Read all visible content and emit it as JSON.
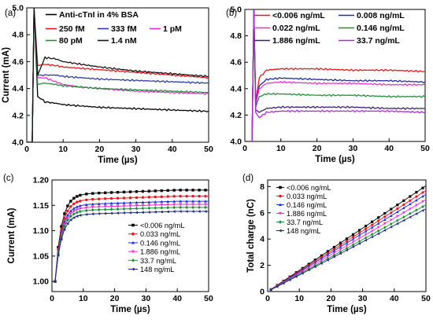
{
  "chart_data": [
    {
      "id": "a",
      "panel_label": "(a)",
      "type": "line",
      "xlabel": "Time (µs)",
      "ylabel": "Current (mA)",
      "xlim": [
        0,
        50
      ],
      "ylim": [
        4.0,
        5.0
      ],
      "xticks": [
        "0",
        "10",
        "20",
        "30",
        "40",
        "50"
      ],
      "yticks": [
        "4.0",
        "4.2",
        "4.4",
        "4.6",
        "4.8",
        "5.0"
      ],
      "legend_position": "top",
      "series": [
        {
          "name": "Anti-cTnI in 4% BSA",
          "color": "#000000",
          "x": [
            0,
            1.5,
            2,
            3,
            5,
            8,
            10,
            15,
            20,
            30,
            40,
            50
          ],
          "y": [
            4.0,
            4.0,
            5.0,
            4.34,
            4.3,
            4.29,
            4.28,
            4.27,
            4.26,
            4.25,
            4.24,
            4.23
          ]
        },
        {
          "name": "250 fM",
          "color": "#e8151b",
          "x": [
            0,
            1.5,
            2,
            3,
            5,
            8,
            10,
            15,
            20,
            30,
            40,
            50
          ],
          "y": [
            4.0,
            4.0,
            5.0,
            4.57,
            4.58,
            4.57,
            4.56,
            4.55,
            4.54,
            4.52,
            4.5,
            4.48
          ]
        },
        {
          "name": "333 fM",
          "color": "#2a3aa8",
          "x": [
            0,
            1.5,
            2,
            3,
            5,
            8,
            10,
            15,
            20,
            30,
            40,
            50
          ],
          "y": [
            4.0,
            4.0,
            5.0,
            4.5,
            4.5,
            4.5,
            4.49,
            4.48,
            4.47,
            4.46,
            4.45,
            4.44
          ]
        },
        {
          "name": "1 pM",
          "color": "#ea2fd0",
          "x": [
            0,
            1.5,
            2,
            3,
            5,
            8,
            10,
            15,
            20,
            30,
            40,
            50
          ],
          "y": [
            4.0,
            4.0,
            5.0,
            4.48,
            4.48,
            4.45,
            4.43,
            4.41,
            4.4,
            4.38,
            4.37,
            4.36
          ]
        },
        {
          "name": "80 pM",
          "color": "#1f8f3a",
          "x": [
            0,
            1.5,
            2,
            3,
            5,
            8,
            10,
            15,
            20,
            30,
            40,
            50
          ],
          "y": [
            4.0,
            4.0,
            5.0,
            4.43,
            4.44,
            4.43,
            4.42,
            4.41,
            4.4,
            4.39,
            4.38,
            4.37
          ]
        },
        {
          "name": "1.4 nM",
          "color": "#151515",
          "x": [
            0,
            1.5,
            2,
            3,
            5,
            8,
            10,
            15,
            20,
            30,
            40,
            50
          ],
          "y": [
            4.0,
            4.0,
            5.0,
            4.5,
            4.63,
            4.62,
            4.6,
            4.58,
            4.56,
            4.53,
            4.51,
            4.49
          ]
        }
      ]
    },
    {
      "id": "b",
      "panel_label": "(b)",
      "type": "line",
      "xlabel": "Time (µs)",
      "ylabel": "",
      "xlim": [
        0,
        50
      ],
      "ylim": [
        4.0,
        5.0
      ],
      "xticks": [
        "0",
        "10",
        "20",
        "30",
        "40",
        "50"
      ],
      "yticks": [
        "4.0",
        "4.2",
        "4.4",
        "4.6",
        "4.8",
        "5.0"
      ],
      "legend_position": "top",
      "series": [
        {
          "name": "<0.006 ng/mL",
          "color": "#e8151b",
          "x": [
            0,
            2,
            2.5,
            3,
            4,
            6,
            10,
            20,
            30,
            40,
            50
          ],
          "y": [
            4.0,
            4.0,
            5.0,
            4.3,
            4.48,
            4.54,
            4.55,
            4.55,
            4.54,
            4.54,
            4.53
          ]
        },
        {
          "name": "0.008 ng/mL",
          "color": "#1f2f9a",
          "x": [
            0,
            2,
            2.5,
            3,
            4,
            6,
            10,
            20,
            30,
            40,
            50
          ],
          "y": [
            4.0,
            4.0,
            5.0,
            4.28,
            4.42,
            4.47,
            4.48,
            4.47,
            4.46,
            4.46,
            4.45
          ]
        },
        {
          "name": "0.022 ng/mL",
          "color": "#ea2fd0",
          "x": [
            0,
            2,
            2.5,
            3,
            4,
            6,
            10,
            20,
            30,
            40,
            50
          ],
          "y": [
            4.0,
            4.0,
            5.0,
            4.28,
            4.4,
            4.44,
            4.45,
            4.44,
            4.44,
            4.43,
            4.43
          ]
        },
        {
          "name": "0.146 ng/mL",
          "color": "#1f8f3a",
          "x": [
            0,
            2,
            2.5,
            3,
            4,
            6,
            10,
            20,
            30,
            40,
            50
          ],
          "y": [
            4.0,
            4.0,
            5.0,
            4.26,
            4.34,
            4.36,
            4.36,
            4.35,
            4.35,
            4.34,
            4.34
          ]
        },
        {
          "name": "1.886 ng/mL",
          "color": "#3a1f6a",
          "x": [
            0,
            2,
            2.5,
            3,
            4,
            6,
            10,
            20,
            30,
            40,
            50
          ],
          "y": [
            4.0,
            4.0,
            5.0,
            4.24,
            4.22,
            4.25,
            4.26,
            4.26,
            4.26,
            4.25,
            4.25
          ]
        },
        {
          "name": "33.7 ng/mL",
          "color": "#b02ad6",
          "x": [
            0,
            2,
            2.5,
            3,
            4,
            6,
            10,
            20,
            30,
            40,
            50
          ],
          "y": [
            4.0,
            4.0,
            5.0,
            4.22,
            4.18,
            4.22,
            4.23,
            4.23,
            4.23,
            4.23,
            4.22
          ]
        }
      ]
    },
    {
      "id": "c",
      "panel_label": "(c)",
      "type": "line",
      "xlabel": "Time (µs)",
      "ylabel": "Current (mA)",
      "xlim": [
        0,
        50
      ],
      "ylim": [
        0.98,
        1.2
      ],
      "xticks": [
        "0",
        "10",
        "20",
        "30",
        "40",
        "50"
      ],
      "yticks": [
        "1.00",
        "1.05",
        "1.10",
        "1.15",
        "1.20"
      ],
      "legend_position": "lower-right",
      "series": [
        {
          "name": "<0.006 ng/mL",
          "color": "#000000",
          "marker": "square"
        },
        {
          "name": "0.033 ng/mL",
          "color": "#e8151b",
          "marker": "circle"
        },
        {
          "name": "0.146 ng/mL",
          "color": "#1f2fd6",
          "marker": "triangle-up"
        },
        {
          "name": "1.886 ng/mL",
          "color": "#ea2fd0",
          "marker": "triangle-down"
        },
        {
          "name": "33.7 ng/mL",
          "color": "#1f8f3a",
          "marker": "diamond"
        },
        {
          "name": "148 ng/mL",
          "color": "#1f2a7a",
          "marker": "triangle-left"
        }
      ],
      "x": [
        1,
        2,
        3,
        4,
        5,
        6,
        7,
        8,
        9,
        10,
        11,
        12,
        13,
        14,
        15,
        16,
        17,
        18,
        19,
        20,
        21,
        22,
        23,
        24,
        25,
        26,
        27,
        28,
        29,
        30,
        31,
        32,
        33,
        34,
        35,
        36,
        37,
        38,
        39,
        40,
        41,
        42,
        43,
        44,
        45,
        46,
        47,
        48,
        49,
        50
      ],
      "final_values": [
        1.18,
        1.168,
        1.158,
        1.152,
        1.146,
        1.138
      ]
    },
    {
      "id": "d",
      "panel_label": "(d)",
      "type": "line",
      "xlabel": "Time (µs)",
      "ylabel": "Total charge (nC)",
      "xlim": [
        0,
        50
      ],
      "ylim": [
        0,
        8.5
      ],
      "xticks": [
        "0",
        "10",
        "20",
        "30",
        "40",
        "50"
      ],
      "yticks": [
        "0",
        "2",
        "4",
        "6",
        "8"
      ],
      "legend_position": "upper-left",
      "series": [
        {
          "name": "<0.006 ng/mL",
          "color": "#000000",
          "marker": "square",
          "x": [
            0,
            50
          ],
          "y": [
            0,
            8.05
          ]
        },
        {
          "name": "0.033 ng/mL",
          "color": "#e8151b",
          "marker": "circle",
          "x": [
            0,
            50
          ],
          "y": [
            0,
            7.7
          ]
        },
        {
          "name": "0.146 ng/mL",
          "color": "#1f2fd6",
          "marker": "triangle-up",
          "x": [
            0,
            50
          ],
          "y": [
            0,
            7.4
          ]
        },
        {
          "name": "1.886 ng/mL",
          "color": "#ea2fd0",
          "marker": "triangle-down",
          "x": [
            0,
            50
          ],
          "y": [
            0,
            7.0
          ]
        },
        {
          "name": "33.7 ng/mL",
          "color": "#1f8f3a",
          "marker": "diamond",
          "x": [
            0,
            50
          ],
          "y": [
            0,
            6.6
          ]
        },
        {
          "name": "148 ng/mL",
          "color": "#1f2a7a",
          "marker": "triangle-left",
          "x": [
            0,
            50
          ],
          "y": [
            0,
            6.3
          ]
        }
      ]
    }
  ]
}
